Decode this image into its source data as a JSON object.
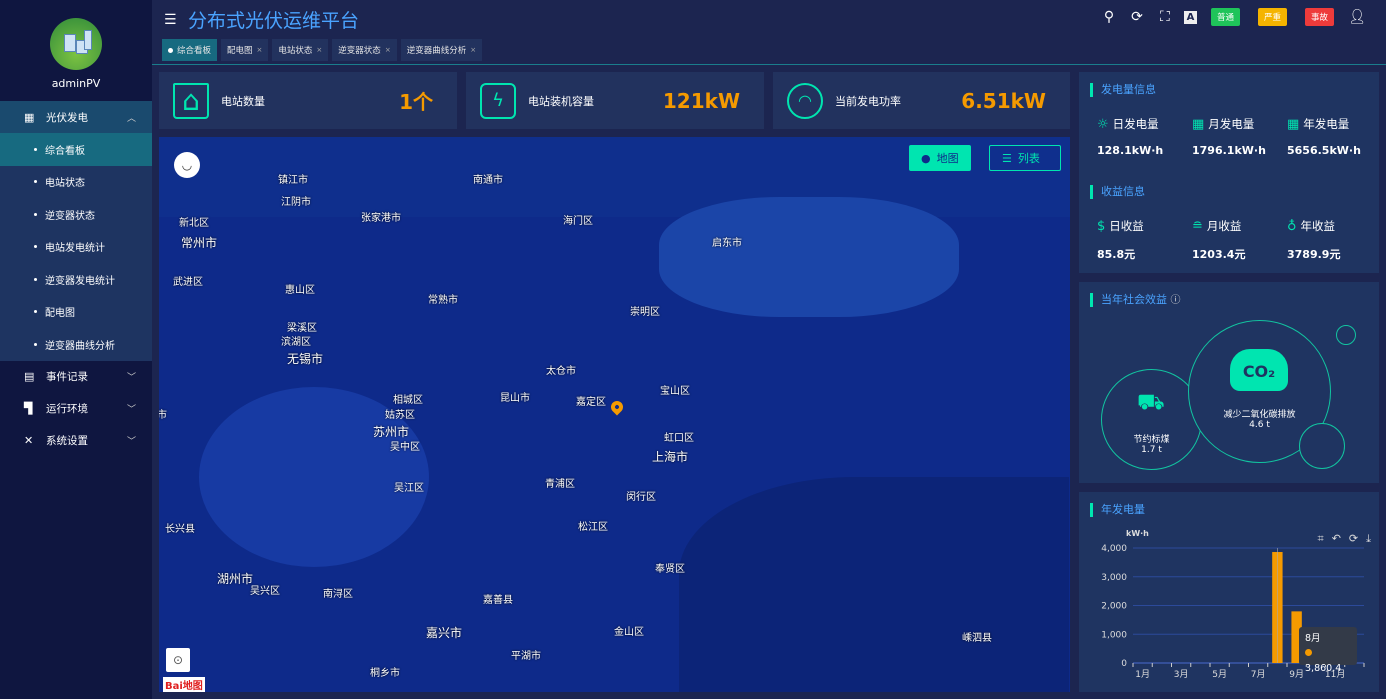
{
  "sidebar": {
    "username": "adminPV",
    "groups": [
      {
        "label": "光伏发电",
        "icon": "grid-icon",
        "expanded": true,
        "items": [
          "综合看板",
          "电站状态",
          "逆变器状态",
          "电站发电统计",
          "逆变器发电统计",
          "配电图",
          "逆变器曲线分析"
        ],
        "active": "综合看板"
      },
      {
        "label": "事件记录",
        "icon": "clipboard-icon"
      },
      {
        "label": "运行环境",
        "icon": "environment-icon"
      },
      {
        "label": "系统设置",
        "icon": "tools-icon"
      }
    ]
  },
  "header": {
    "title": "分布式光伏运维平台",
    "tabs": [
      {
        "label": "综合看板",
        "active": true
      },
      {
        "label": "配电图"
      },
      {
        "label": "电站状态"
      },
      {
        "label": "逆变器状态"
      },
      {
        "label": "逆变器曲线分析"
      }
    ],
    "badges": [
      {
        "label": "普通",
        "color": "#1fc45a"
      },
      {
        "label": "严重",
        "color": "#f5b400"
      },
      {
        "label": "事故",
        "color": "#ee3b3b"
      }
    ]
  },
  "cards": [
    {
      "label": "电站数量",
      "value": "1个",
      "icon": "house-bolt-icon"
    },
    {
      "label": "电站装机容量",
      "value": "121kW",
      "icon": "battery-bolt-icon"
    },
    {
      "label": "当前发电功率",
      "value": "6.51kW",
      "icon": "gauge-icon"
    }
  ],
  "map": {
    "buttons": {
      "map": "地图",
      "list": "列表"
    },
    "logo": "Bai地图",
    "labels": [
      "镇江市",
      "南通市",
      "江阴市",
      "新北区",
      "张家港市",
      "海门区",
      "常州市",
      "启东市",
      "武进区",
      "惠山区",
      "常熟市",
      "崇明区",
      "梁溪区",
      "滨湖区",
      "无锡市",
      "太仓市",
      "宝山区",
      "昆山市",
      "嘉定区",
      "相城区",
      "姑苏区",
      "苏州市",
      "吴中区",
      "虹口区",
      "上海市",
      "市",
      "吴江区",
      "青浦区",
      "闵行区",
      "松江区",
      "长兴县",
      "奉贤区",
      "湖州市",
      "吴兴区",
      "南浔区",
      "嘉善县",
      "嘉兴市",
      "金山区",
      "嵊泗县",
      "平湖市",
      "桐乡市"
    ]
  },
  "generation": {
    "title": "发电量信息",
    "items": [
      {
        "label": "日发电量",
        "value": "128.1kW·h"
      },
      {
        "label": "月发电量",
        "value": "1796.1kW·h"
      },
      {
        "label": "年发电量",
        "value": "5656.5kW·h"
      }
    ]
  },
  "income": {
    "title": "收益信息",
    "items": [
      {
        "label": "日收益",
        "value": "85.8元"
      },
      {
        "label": "月收益",
        "value": "1203.4元"
      },
      {
        "label": "年收益",
        "value": "3789.9元"
      }
    ]
  },
  "social": {
    "title": "当年社会效益",
    "coal": {
      "label": "节约标煤",
      "value": "1.7 t"
    },
    "co2": {
      "label": "减少二氧化碳排放",
      "value": "4.6 t",
      "icon_text": "CO₂"
    }
  },
  "chart_data": {
    "type": "bar",
    "title": "年发电量",
    "ylabel": "kW·h",
    "ylim": [
      0,
      4000
    ],
    "yticks": [
      "0",
      "1,000",
      "2,000",
      "3,000",
      "4,000"
    ],
    "categories": [
      "1月",
      "2月",
      "3月",
      "4月",
      "5月",
      "6月",
      "7月",
      "8月",
      "9月",
      "10月",
      "11月",
      "12月"
    ],
    "xtick_labels": [
      "1月",
      "3月",
      "5月",
      "7月",
      "9月",
      "11月"
    ],
    "values": [
      0,
      0,
      0,
      0,
      0,
      0,
      0,
      3860.4,
      1796.1,
      0,
      0,
      0
    ],
    "color": "#f59a00",
    "tooltip": {
      "category": "8月",
      "value": "3,860.4"
    },
    "grid": true
  }
}
